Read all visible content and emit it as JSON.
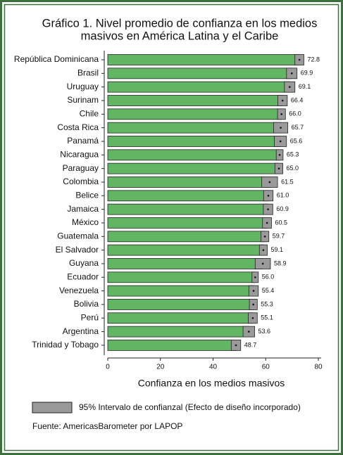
{
  "chart_data": {
    "type": "bar",
    "orientation": "horizontal",
    "title": [
      "Gráfico 1. Nivel promedio de confianza en los medios",
      "masivos en América Latina y el Caribe"
    ],
    "categories": [
      "República Dominicana",
      "Brasil",
      "Uruguay",
      "Surinam",
      "Chile",
      "Costa Rica",
      "Panamá",
      "Nicaragua",
      "Paraguay",
      "Colombia",
      "Belice",
      "Jamaica",
      "México",
      "Guatemala",
      "El Salvador",
      "Guyana",
      "Ecuador",
      "Venezuela",
      "Bolivia",
      "Perú",
      "Argentina",
      "Trinidad y Tobago"
    ],
    "values": [
      72.8,
      69.9,
      69.1,
      66.4,
      66,
      65.7,
      65.6,
      65.3,
      65,
      61.5,
      61,
      60.9,
      60.5,
      59.7,
      59.1,
      58.9,
      56,
      55.4,
      55.3,
      55.1,
      53.6,
      48.7
    ],
    "value_labels": [
      "72.8",
      "69.9",
      "69.1",
      "66.4",
      "66.0",
      "65.7",
      "65.6",
      "65.3",
      "65.0",
      "61.5",
      "61.0",
      "60.9",
      "60.5",
      "59.7",
      "59.1",
      "58.9",
      "56.0",
      "55.4",
      "55.3",
      "55.1",
      "53.6",
      "48.7"
    ],
    "errors": [
      1.7,
      2.0,
      2.0,
      1.8,
      1.5,
      2.7,
      2.3,
      1.3,
      1.5,
      3.0,
      1.8,
      1.8,
      1.7,
      1.5,
      1.5,
      2.9,
      1.2,
      1.8,
      1.5,
      1.7,
      2.2,
      1.8
    ],
    "color": "#62b562",
    "error_color": "#9a9a9a",
    "xlim": [
      0,
      80
    ],
    "xticks": [
      0,
      20,
      40,
      60,
      80
    ],
    "xlabel": "Confianza en los medios masivos",
    "legend": "95% Intervalo de confianzal (Efecto de diseño incorporado)",
    "source": "Fuente: AmericasBarometer por LAPOP"
  }
}
